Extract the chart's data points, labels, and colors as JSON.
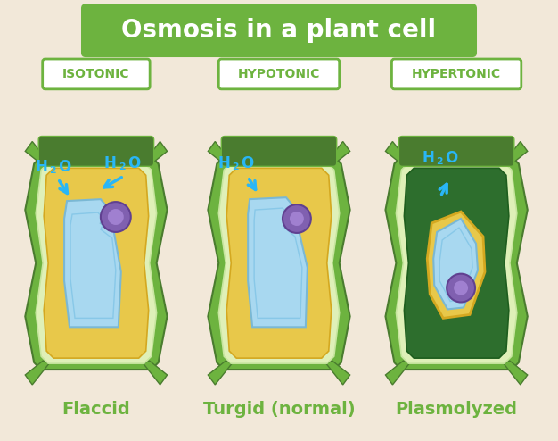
{
  "title": "Osmosis in a plant cell",
  "title_bg_color": "#6db33f",
  "title_text_color": "#ffffff",
  "background_color": "#f2e8d9",
  "labels": [
    "ISOTONIC",
    "HYPOTONIC",
    "HYPERTONIC"
  ],
  "label_border_color": "#6db33f",
  "label_text_color": "#6db33f",
  "sublabels": [
    "Flaccid",
    "Turgid (normal)",
    "Plasmolyzed"
  ],
  "sublabel_color": "#6db33f",
  "h2o_color": "#29b6f6",
  "arrow_color": "#29b6f6",
  "cw_dark": "#4a7c2f",
  "cw_mid": "#6db33f",
  "cw_light": "#c8e6a0",
  "cw_pale": "#dff0b8",
  "cytoplasm_yellow": "#e8c84a",
  "vacuole_blue": "#a8d8f0",
  "vacuole_edge": "#7ab8d4",
  "nucleus_fill": "#8060b0",
  "nucleus_dark": "#604090",
  "dark_green_fill": "#2d6e2d",
  "gold_border": "#d4a820"
}
